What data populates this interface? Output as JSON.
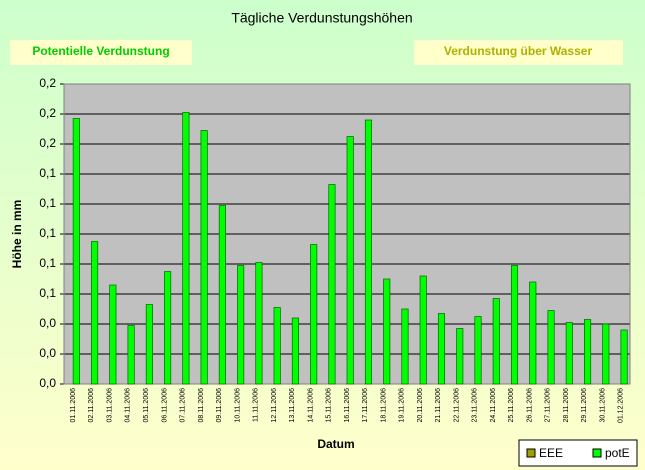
{
  "buttons": [
    "Potentielle Verdunstung",
    "Verdunstung über Wasser"
  ],
  "chart_data": {
    "type": "bar",
    "title": "Tägliche Verdunstungshöhen",
    "xlabel": "Datum",
    "ylabel": "Höhe in mm",
    "categories": [
      "01.11.2006",
      "02.11.2006",
      "03.11.2006",
      "04.11.2006",
      "05.11.2006",
      "06.11.2006",
      "07.11.2006",
      "08.11.2006",
      "09.11.2006",
      "10.11.2006",
      "11.11.2006",
      "12.11.2006",
      "13.11.2006",
      "14.11.2006",
      "15.11.2006",
      "16.11.2006",
      "17.11.2006",
      "18.11.2006",
      "19.11.2006",
      "20.11.2006",
      "21.11.2006",
      "22.11.2006",
      "23.11.2006",
      "24.11.2006",
      "25.11.2006",
      "26.11.2006",
      "27.11.2006",
      "28.11.2006",
      "29.11.2006",
      "30.11.2006",
      "01.12.2006"
    ],
    "series": [
      {
        "name": "EEE",
        "color": "#a0a000",
        "values": [
          null,
          null,
          null,
          null,
          null,
          null,
          null,
          null,
          null,
          null,
          null,
          null,
          null,
          null,
          null,
          null,
          null,
          null,
          null,
          null,
          null,
          null,
          null,
          null,
          null,
          null,
          null,
          null,
          null,
          null,
          null
        ]
      },
      {
        "name": "potE",
        "color": "#00ff00",
        "values": [
          0.177,
          0.095,
          0.066,
          0.039,
          0.053,
          0.075,
          0.181,
          0.169,
          0.119,
          0.079,
          0.081,
          0.051,
          0.044,
          0.093,
          0.133,
          0.165,
          0.176,
          0.07,
          0.05,
          0.072,
          0.047,
          0.037,
          0.045,
          0.057,
          0.079,
          0.068,
          0.049,
          0.041,
          0.043,
          0.04,
          0.036
        ]
      }
    ],
    "ylim": [
      0,
      0.2
    ],
    "yticks": [
      {
        "value": 0,
        "label": "0,0"
      },
      {
        "value": 0.02,
        "label": "0,0"
      },
      {
        "value": 0.04,
        "label": "0,0"
      },
      {
        "value": 0.06,
        "label": "0,1"
      },
      {
        "value": 0.08,
        "label": "0,1"
      },
      {
        "value": 0.1,
        "label": "0,1"
      },
      {
        "value": 0.12,
        "label": "0,1"
      },
      {
        "value": 0.14,
        "label": "0,1"
      },
      {
        "value": 0.16,
        "label": "0,2"
      },
      {
        "value": 0.18,
        "label": "0,2"
      },
      {
        "value": 0.2,
        "label": "0,2"
      }
    ],
    "grid": true,
    "legend": "lower right"
  }
}
